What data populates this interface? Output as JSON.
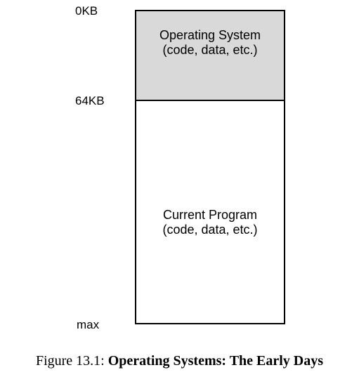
{
  "address_labels": {
    "start": "0KB",
    "os_end": "64KB",
    "end": "max"
  },
  "segments": {
    "os": {
      "title": "Operating System",
      "subtitle": "(code, data, etc.)",
      "fill_color": "#d9d9d9"
    },
    "program": {
      "title": "Current Program",
      "subtitle": "(code, data, etc.)",
      "fill_color": "#ffffff"
    }
  },
  "caption": {
    "prefix": "Figure 13.1:",
    "title": "Operating Systems: The Early Days"
  }
}
